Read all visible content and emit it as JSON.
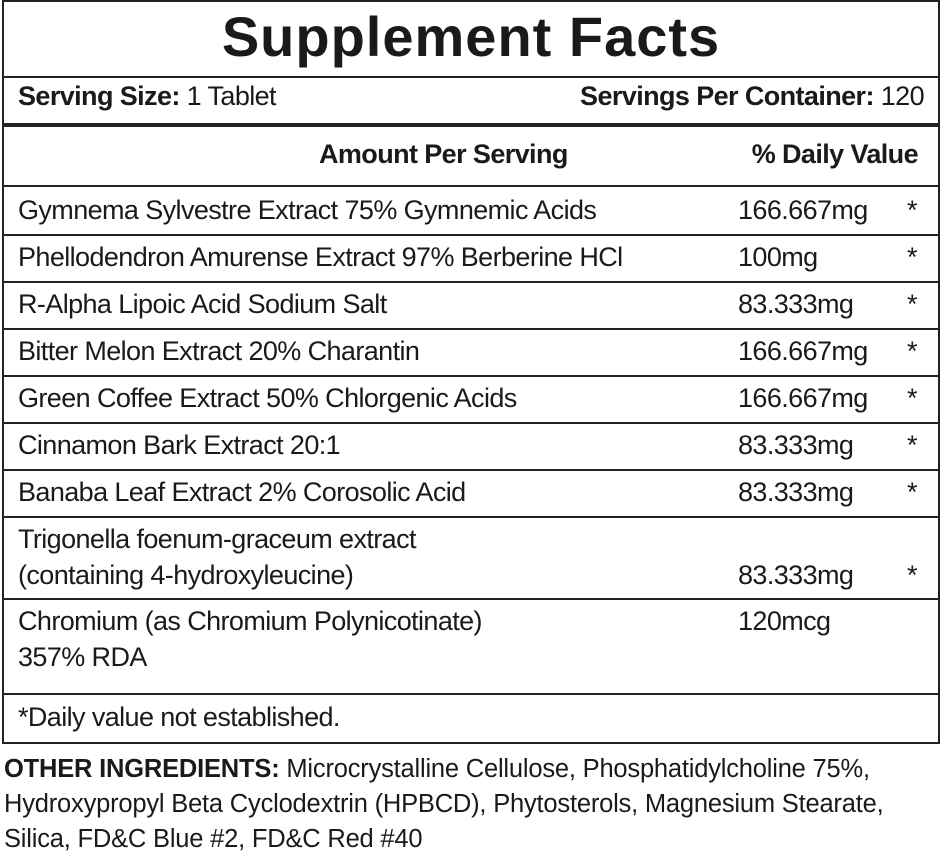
{
  "title": "Supplement Facts",
  "serving_size": {
    "label": "Serving Size:",
    "value": "1 Tablet"
  },
  "servings_per_container": {
    "label": "Servings Per Container:",
    "value": "120"
  },
  "header": {
    "amount": "Amount Per Serving",
    "daily_value": "% Daily Value"
  },
  "rows": [
    {
      "name": "Gymnema Sylvestre Extract 75% Gymnemic Acids",
      "amount": "166.667mg",
      "dv": "*"
    },
    {
      "name": "Phellodendron Amurense Extract 97% Berberine HCl",
      "amount": "100mg",
      "dv": "*"
    },
    {
      "name": "R-Alpha Lipoic Acid Sodium Salt",
      "amount": "83.333mg",
      "dv": "*"
    },
    {
      "name": "Bitter Melon Extract 20% Charantin",
      "amount": "166.667mg",
      "dv": "*"
    },
    {
      "name": "Green Coffee Extract 50% Chlorgenic Acids",
      "amount": "166.667mg",
      "dv": "*"
    },
    {
      "name": "Cinnamon Bark Extract 20:1",
      "amount": "83.333mg",
      "dv": "*"
    },
    {
      "name": "Banaba Leaf Extract 2% Corosolic Acid",
      "amount": "83.333mg",
      "dv": "*"
    },
    {
      "name": "Trigonella foenum-graceum extract",
      "name2": "(containing 4-hydroxyleucine)",
      "amount": "83.333mg",
      "dv": "*"
    },
    {
      "name": "Chromium (as Chromium Polynicotinate)",
      "name2": "357% RDA",
      "amount": "120mcg"
    }
  ],
  "footnote": "*Daily value not established.",
  "other_ingredients": {
    "label": "OTHER INGREDIENTS:",
    "text": "Microcrystalline Cellulose, Phosphatidylcholine 75%, Hydroxypropyl Beta Cyclodextrin (HPBCD), Phytosterols, Magnesium Stearate, Silica, FD&C Blue #2, FD&C Red #40"
  }
}
